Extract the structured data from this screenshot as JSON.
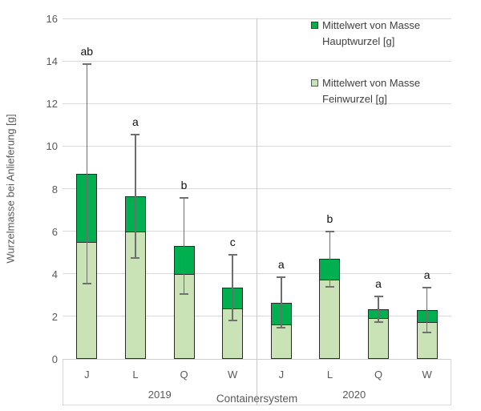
{
  "legend": {
    "entries": [
      {
        "series": "Hauptwurzel",
        "color": "#00B050",
        "label_lines": [
          "Mittelwert von Masse",
          "Hauptwurzel [g]"
        ]
      },
      {
        "series": "Feinwurzel",
        "color": "#C9E3B6",
        "label_lines": [
          "Mittelwert von Masse",
          "Feinwurzel [g]"
        ]
      }
    ]
  },
  "chart_data": {
    "type": "bar",
    "stacked": true,
    "title": "",
    "ylabel": "Wurzelmasse bei Anlieferung [g]",
    "xlabel": "Containersystem",
    "ylim": [
      0,
      16
    ],
    "y_ticks": [
      0,
      2,
      4,
      6,
      8,
      10,
      12,
      14,
      16
    ],
    "grid": true,
    "legend_position": "top-right",
    "group_labels": [
      "2019",
      "2020"
    ],
    "categories": [
      "J",
      "L",
      "Q",
      "W",
      "J",
      "L",
      "Q",
      "W"
    ],
    "series": [
      {
        "name": "Mittelwert von Masse Feinwurzel [g]",
        "color": "#C9E3B6",
        "values": [
          5.45,
          5.95,
          3.95,
          2.35,
          1.6,
          3.7,
          1.9,
          1.7
        ]
      },
      {
        "name": "Mittelwert von Masse Hauptwurzel [g]",
        "color": "#00B050",
        "values": [
          3.25,
          1.7,
          1.35,
          1.0,
          1.05,
          1.0,
          0.45,
          0.6
        ]
      }
    ],
    "stack_totals": [
      8.7,
      7.65,
      5.3,
      3.35,
      2.65,
      4.7,
      2.35,
      2.3
    ],
    "error_bars": {
      "upper": [
        13.85,
        10.55,
        7.55,
        4.9,
        3.85,
        6.0,
        2.95,
        3.35
      ],
      "lower": [
        3.55,
        4.75,
        3.05,
        1.8,
        1.45,
        3.4,
        1.75,
        1.25
      ]
    },
    "sig_letters": [
      "ab",
      "a",
      "b",
      "c",
      "a",
      "b",
      "a",
      "a"
    ]
  }
}
